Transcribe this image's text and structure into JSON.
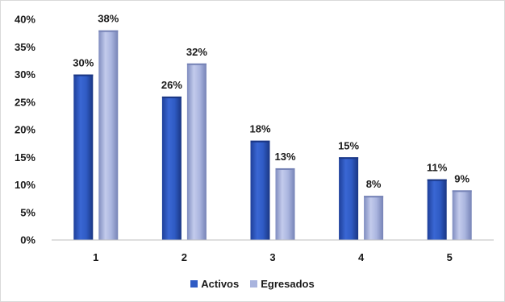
{
  "chart_data": {
    "type": "bar",
    "categories": [
      "1",
      "2",
      "3",
      "4",
      "5"
    ],
    "series": [
      {
        "name": "Activos",
        "values": [
          30,
          26,
          18,
          15,
          11
        ],
        "color": "#2f5bc4",
        "labels": [
          "30%",
          "26%",
          "18%",
          "15%",
          "11%"
        ]
      },
      {
        "name": "Egresados",
        "values": [
          38,
          32,
          13,
          8,
          9
        ],
        "color": "#a9b4de",
        "labels": [
          "38%",
          "32%",
          "13%",
          "8%",
          "9%"
        ]
      }
    ],
    "ylim": [
      0,
      40
    ],
    "yticks": [
      {
        "value": 0,
        "label": "0%"
      },
      {
        "value": 5,
        "label": "5%"
      },
      {
        "value": 10,
        "label": "10%"
      },
      {
        "value": 15,
        "label": "15%"
      },
      {
        "value": 20,
        "label": "20%"
      },
      {
        "value": 25,
        "label": "25%"
      },
      {
        "value": 30,
        "label": "30%"
      },
      {
        "value": 35,
        "label": "35%"
      },
      {
        "value": 40,
        "label": "40%"
      }
    ],
    "grid": false,
    "legend_position": "bottom",
    "title": "",
    "xlabel": "",
    "ylabel": ""
  }
}
